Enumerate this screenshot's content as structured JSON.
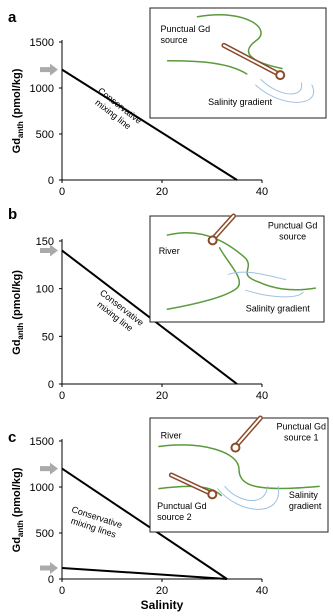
{
  "chart_data": [
    {
      "type": "line",
      "panel_label": "a",
      "xlabel": "",
      "ylabel_main": "Gd",
      "ylabel_sub": "anth",
      "ylabel_unit": " (pmol/kg)",
      "xlim": [
        0,
        40
      ],
      "ylim": [
        0,
        1500
      ],
      "xticks": [
        "0",
        "20",
        "40"
      ],
      "yticks": [
        "0",
        "500",
        "1000",
        "1500"
      ],
      "series": [
        {
          "x": [
            0,
            35
          ],
          "y": [
            1200,
            0
          ]
        }
      ],
      "arrow_y": [
        1200
      ],
      "annotation": [
        "Conservative",
        "mixing line"
      ],
      "inset": {
        "labels": [
          [
            "Punctual Gd",
            "source"
          ],
          [
            "Salinity gradient"
          ]
        ]
      },
      "colors": {
        "line": "#000000",
        "arrow": "#aaaaaa",
        "river": "#5a9a3c",
        "pipe": "#8b4a2b",
        "salinity": "#9fc1e3"
      }
    },
    {
      "type": "line",
      "panel_label": "b",
      "xlabel": "",
      "ylabel_main": "Gd",
      "ylabel_sub": "anth",
      "ylabel_unit": " (pmol/kg)",
      "xlim": [
        0,
        40
      ],
      "ylim": [
        0,
        150
      ],
      "xticks": [
        "0",
        "20",
        "40"
      ],
      "yticks": [
        "0",
        "50",
        "100",
        "150"
      ],
      "series": [
        {
          "x": [
            0,
            35
          ],
          "y": [
            140,
            0
          ]
        }
      ],
      "arrow_y": [
        140
      ],
      "annotation": [
        "Conservative",
        "mixing line"
      ],
      "inset": {
        "labels": [
          [
            "River"
          ],
          [
            "Punctual Gd",
            "source"
          ],
          [
            "Salinity gradient"
          ]
        ]
      },
      "colors": {
        "line": "#000000",
        "arrow": "#aaaaaa",
        "river": "#5a9a3c",
        "pipe": "#8b4a2b",
        "salinity": "#9fc1e3"
      }
    },
    {
      "type": "line",
      "panel_label": "c",
      "xlabel": "Salinity",
      "ylabel_main": "Gd",
      "ylabel_sub": "anth",
      "ylabel_unit": " (pmol/kg)",
      "xlim": [
        0,
        40
      ],
      "ylim": [
        0,
        1500
      ],
      "xticks": [
        "0",
        "20",
        "40"
      ],
      "yticks": [
        "0",
        "500",
        "1000",
        "1500"
      ],
      "series": [
        {
          "x": [
            0,
            33
          ],
          "y": [
            1200,
            0
          ]
        },
        {
          "x": [
            0,
            33
          ],
          "y": [
            120,
            0
          ]
        }
      ],
      "arrow_y": [
        1200,
        120
      ],
      "annotation": [
        "Conservative",
        "mixing lines"
      ],
      "inset": {
        "labels": [
          [
            "River"
          ],
          [
            "Punctual Gd",
            "source 1"
          ],
          [
            "Punctual Gd",
            "source 2"
          ],
          [
            "Salinity",
            "gradient"
          ]
        ]
      },
      "colors": {
        "line": "#000000",
        "arrow": "#aaaaaa",
        "river": "#5a9a3c",
        "pipe": "#8b4a2b",
        "salinity": "#9fc1e3"
      }
    }
  ]
}
